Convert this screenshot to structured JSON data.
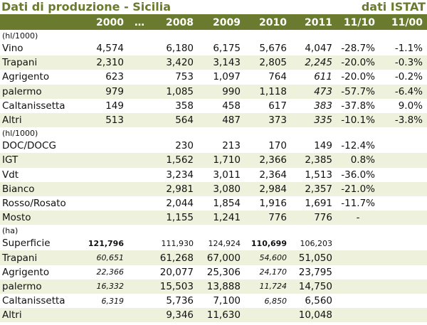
{
  "title": "Dati di produzione - Sicilia",
  "source": "dati ISTAT",
  "headers": [
    "",
    "2000",
    "…",
    "2008",
    "2009",
    "2010",
    "2011",
    "11/10",
    "11/00"
  ],
  "sections": [
    {
      "unit": "(hl/1000)",
      "rows": [
        {
          "label": "Vino",
          "cells": [
            "4,574",
            "",
            "6,180",
            "6,175",
            "5,676",
            "4,047",
            "-28.7%",
            "-1.1%"
          ],
          "styles": [
            "",
            "",
            "",
            "",
            "",
            "",
            "",
            ""
          ]
        },
        {
          "label": "Trapani",
          "cells": [
            "2,310",
            "",
            "3,420",
            "3,143",
            "2,805",
            "2,245",
            "-20.0%",
            "-0.3%"
          ],
          "styles": [
            "",
            "",
            "",
            "",
            "",
            "it",
            "",
            ""
          ]
        },
        {
          "label": "Agrigento",
          "cells": [
            "623",
            "",
            "753",
            "1,097",
            "764",
            "611",
            "-20.0%",
            "-0.2%"
          ],
          "styles": [
            "",
            "",
            "",
            "",
            "",
            "it",
            "",
            ""
          ]
        },
        {
          "label": "palermo",
          "cells": [
            "979",
            "",
            "1,085",
            "990",
            "1,118",
            "473",
            "-57.7%",
            "-6.4%"
          ],
          "styles": [
            "",
            "",
            "",
            "",
            "",
            "it",
            "",
            ""
          ]
        },
        {
          "label": "Caltanissetta",
          "cells": [
            "149",
            "",
            "358",
            "458",
            "617",
            "383",
            "-37.8%",
            "9.0%"
          ],
          "styles": [
            "",
            "",
            "",
            "",
            "",
            "it",
            "",
            ""
          ]
        },
        {
          "label": "Altri",
          "cells": [
            "513",
            "",
            "564",
            "487",
            "373",
            "335",
            "-10.1%",
            "-3.8%"
          ],
          "styles": [
            "",
            "",
            "",
            "",
            "",
            "it",
            "",
            ""
          ]
        }
      ]
    },
    {
      "unit": "(hl/1000)",
      "rows": [
        {
          "label": "DOC/DOCG",
          "cells": [
            "",
            "",
            "230",
            "213",
            "170",
            "149",
            "-12.4%",
            ""
          ],
          "styles": [
            "",
            "",
            "",
            "",
            "",
            "",
            "",
            ""
          ]
        },
        {
          "label": "IGT",
          "cells": [
            "",
            "",
            "1,562",
            "1,710",
            "2,366",
            "2,385",
            "0.8%",
            ""
          ],
          "styles": [
            "",
            "",
            "",
            "",
            "",
            "",
            "",
            ""
          ]
        },
        {
          "label": "Vdt",
          "cells": [
            "",
            "",
            "3,234",
            "3,011",
            "2,364",
            "1,513",
            "-36.0%",
            ""
          ],
          "styles": [
            "",
            "",
            "",
            "",
            "",
            "",
            "",
            ""
          ]
        },
        {
          "label": "Bianco",
          "cells": [
            "",
            "",
            "2,981",
            "3,080",
            "2,984",
            "2,357",
            "-21.0%",
            ""
          ],
          "styles": [
            "",
            "",
            "",
            "",
            "",
            "",
            "",
            ""
          ]
        },
        {
          "label": "Rosso/Rosato",
          "cells": [
            "",
            "",
            "2,044",
            "1,854",
            "1,916",
            "1,691",
            "-11.7%",
            ""
          ],
          "styles": [
            "",
            "",
            "",
            "",
            "",
            "",
            "",
            ""
          ]
        },
        {
          "label": "Mosto",
          "cells": [
            "",
            "",
            "1,155",
            "1,241",
            "776",
            "776",
            "-",
            ""
          ],
          "styles": [
            "",
            "",
            "",
            "",
            "",
            "",
            "",
            ""
          ]
        }
      ]
    },
    {
      "unit": "(ha)",
      "rows": [
        {
          "label": "Superficie",
          "cells": [
            "121,796",
            "",
            "111,930",
            "124,924",
            "110,699",
            "106,203",
            "",
            ""
          ],
          "styles": [
            "bsm",
            "",
            "sm",
            "sm",
            "bsm",
            "sm",
            "",
            ""
          ]
        },
        {
          "label": "Trapani",
          "cells": [
            "60,651",
            "",
            "61,268",
            "67,000",
            "54,600",
            "51,050",
            "",
            ""
          ],
          "styles": [
            "ism",
            "",
            "",
            "",
            "ism",
            "",
            "",
            ""
          ]
        },
        {
          "label": "Agrigento",
          "cells": [
            "22,366",
            "",
            "20,077",
            "25,306",
            "24,170",
            "23,795",
            "",
            ""
          ],
          "styles": [
            "ism",
            "",
            "",
            "",
            "ism",
            "",
            "",
            ""
          ]
        },
        {
          "label": "palermo",
          "cells": [
            "16,332",
            "",
            "15,503",
            "13,888",
            "11,724",
            "14,750",
            "",
            ""
          ],
          "styles": [
            "ism",
            "",
            "",
            "",
            "ism",
            "",
            "",
            ""
          ]
        },
        {
          "label": "Caltanissetta",
          "cells": [
            "6,319",
            "",
            "5,736",
            "7,100",
            "6,850",
            "6,560",
            "",
            ""
          ],
          "styles": [
            "ism",
            "",
            "",
            "",
            "ism",
            "",
            "",
            ""
          ]
        },
        {
          "label": "Altri",
          "cells": [
            "",
            "",
            "9,346",
            "11,630",
            "",
            "10,048",
            "",
            ""
          ],
          "styles": [
            "",
            "",
            "",
            "",
            "",
            "",
            "",
            ""
          ]
        }
      ]
    }
  ]
}
